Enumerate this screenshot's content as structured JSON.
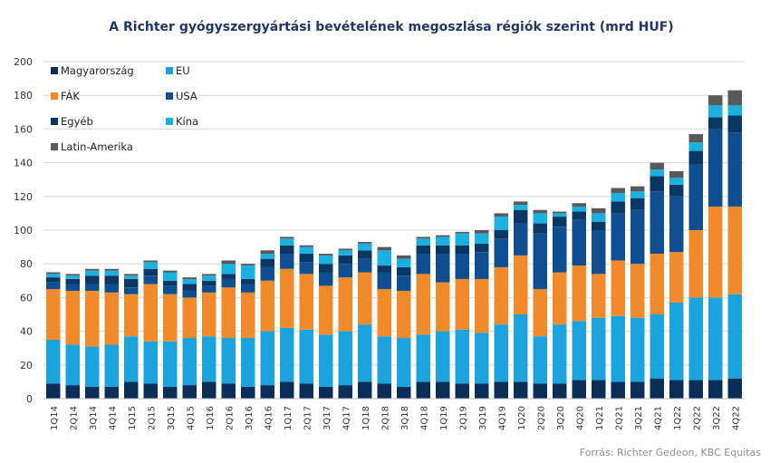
{
  "chart_data": {
    "type": "bar",
    "stacked": true,
    "title": "A Richter gyógyszergyártási bevételének megoszlása régiók szerint (mrd HUF)",
    "source": "Forrás: Richter Gedeon, KBC Equitas",
    "xlabel": "",
    "ylabel": "",
    "ylim": [
      0,
      200
    ],
    "yticks": [
      0,
      20,
      40,
      60,
      80,
      100,
      120,
      140,
      160,
      180,
      200
    ],
    "grid": true,
    "legend_position": "top-left",
    "legend_order": [
      "Magyarország",
      "EU",
      "FÁK",
      "USA",
      "Egyéb",
      "Kína",
      "Latin-Amerika"
    ],
    "categories": [
      "1Q14",
      "2Q14",
      "3Q14",
      "4Q14",
      "1Q15",
      "2Q15",
      "3Q15",
      "4Q15",
      "1Q16",
      "2Q16",
      "3Q16",
      "4Q16",
      "1Q17",
      "2Q17",
      "3Q17",
      "4Q17",
      "1Q18",
      "2Q18",
      "3Q18",
      "4Q18",
      "1Q19",
      "2Q19",
      "3Q19",
      "4Q19",
      "1Q20",
      "2Q20",
      "3Q20",
      "4Q20",
      "1Q21",
      "2Q21",
      "3Q21",
      "4Q21",
      "1Q22",
      "2Q22",
      "3Q22",
      "4Q22"
    ],
    "x_tick_labels": [
      "1Q14",
      "2Q14",
      "3Q14",
      "4Q14",
      "1Q15",
      "2Q15",
      "3Q15",
      "4Q15",
      "1Q16",
      "2Q16",
      "3Q16",
      "4Q16",
      "1Q17",
      "2Q17",
      "3Q17",
      "4Q17",
      "1Q18",
      "2Q18",
      "3Q18",
      "4Q18",
      "1Q19",
      "2Q19",
      "3Q19",
      "4Q19",
      "1Q20",
      "2Q20",
      "3Q20",
      "4Q20",
      "1Q21",
      "2Q21",
      "3Q21",
      "4Q21",
      "1Q22",
      "2Q22",
      "3Q22",
      "4Q22"
    ],
    "series": [
      {
        "name": "Magyarország",
        "color": "#0a2e57",
        "values": [
          9,
          8,
          7,
          7,
          10,
          9,
          7,
          8,
          10,
          9,
          7,
          8,
          10,
          9,
          7,
          8,
          10,
          9,
          7,
          10,
          10,
          9,
          9,
          10,
          10,
          9,
          9,
          11,
          11,
          10,
          10,
          12,
          11,
          11,
          11,
          12
        ]
      },
      {
        "name": "EU",
        "color": "#1aa3dc",
        "values": [
          26,
          24,
          24,
          25,
          27,
          25,
          27,
          28,
          27,
          27,
          29,
          32,
          32,
          32,
          31,
          32,
          34,
          28,
          29,
          28,
          30,
          32,
          30,
          34,
          40,
          28,
          35,
          35,
          37,
          39,
          38,
          38,
          46,
          49,
          49,
          50
        ]
      },
      {
        "name": "FÁK",
        "color": "#f08a2a",
        "values": [
          30,
          32,
          33,
          31,
          25,
          34,
          28,
          24,
          26,
          30,
          27,
          30,
          35,
          33,
          29,
          32,
          31,
          28,
          28,
          36,
          29,
          30,
          32,
          34,
          35,
          28,
          31,
          33,
          26,
          33,
          32,
          36,
          30,
          40,
          54,
          52
        ]
      },
      {
        "name": "USA",
        "color": "#0f4e91",
        "values": [
          4,
          4,
          4,
          5,
          4,
          5,
          5,
          4,
          4,
          5,
          5,
          8,
          9,
          7,
          8,
          8,
          8,
          10,
          9,
          12,
          17,
          15,
          16,
          17,
          19,
          33,
          27,
          27,
          26,
          28,
          32,
          37,
          33,
          39,
          46,
          44
        ]
      },
      {
        "name": "Egyéb",
        "color": "#0b3765",
        "values": [
          3,
          3,
          5,
          5,
          5,
          4,
          3,
          4,
          3,
          3,
          3,
          5,
          5,
          5,
          5,
          5,
          5,
          4,
          5,
          5,
          5,
          5,
          5,
          5,
          8,
          6,
          6,
          5,
          5,
          7,
          7,
          9,
          7,
          8,
          7,
          10
        ]
      },
      {
        "name": "Kína",
        "color": "#1ab0df",
        "values": [
          2,
          2,
          3,
          3,
          2,
          4,
          5,
          3,
          3,
          6,
          8,
          3,
          4,
          4,
          5,
          3,
          4,
          9,
          5,
          4,
          5,
          7,
          6,
          8,
          3,
          6,
          2,
          3,
          5,
          5,
          4,
          4,
          4,
          5,
          7,
          6
        ]
      },
      {
        "name": "Latin-Amerika",
        "color": "#595959",
        "values": [
          1,
          1,
          1,
          1,
          1,
          1,
          1,
          1,
          1,
          2,
          1,
          2,
          1,
          1,
          1,
          1,
          1,
          2,
          2,
          1,
          1,
          1,
          2,
          2,
          2,
          2,
          1,
          2,
          3,
          3,
          3,
          4,
          4,
          5,
          6,
          9
        ]
      }
    ]
  }
}
